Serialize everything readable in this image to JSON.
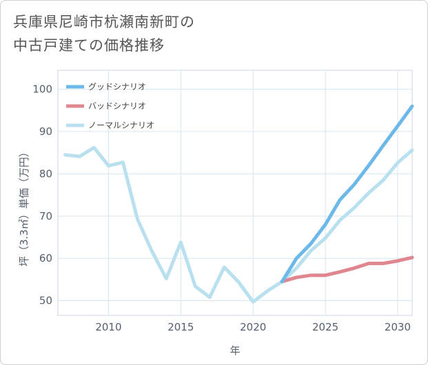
{
  "title": {
    "line1": "兵庫県尼崎市杭瀬南新町の",
    "line2": "中古戸建ての価格推移"
  },
  "chart_data": {
    "type": "line",
    "xlabel": "年",
    "ylabel": "坪（3.3㎡）単価（万円）",
    "xlim": [
      2006.5,
      2031
    ],
    "ylim": [
      46.5,
      104.5
    ],
    "x_ticks": [
      "2010",
      "2015",
      "2020",
      "2025",
      "2030"
    ],
    "y_ticks": [
      "50",
      "60",
      "70",
      "80",
      "90",
      "100"
    ],
    "grid": true,
    "legend_position": "top-left",
    "series": [
      {
        "name": "グッドシナリオ",
        "color": "#6cb8e8",
        "x": [
          2022,
          2023,
          2024,
          2025,
          2026,
          2027,
          2028,
          2029,
          2030,
          2031
        ],
        "y": [
          54.5,
          60.0,
          63.5,
          68.0,
          73.8,
          77.5,
          82.0,
          86.7,
          91.3,
          96.0
        ]
      },
      {
        "name": "バッドシナリオ",
        "color": "#e0868f",
        "x": [
          2022,
          2023,
          2024,
          2025,
          2026,
          2027,
          2028,
          2029,
          2030,
          2031
        ],
        "y": [
          54.5,
          55.5,
          56.0,
          56.0,
          56.8,
          57.7,
          58.8,
          58.8,
          59.4,
          60.2
        ]
      },
      {
        "name": "ノーマルシナリオ",
        "color": "#b9e0ee",
        "x": [
          2007,
          2008,
          2009,
          2010,
          2011,
          2012,
          2013,
          2014,
          2015,
          2016,
          2017,
          2018,
          2019,
          2020,
          2021,
          2022,
          2023,
          2024,
          2025,
          2026,
          2027,
          2028,
          2029,
          2030,
          2031
        ],
        "y": [
          84.5,
          84.1,
          86.2,
          81.9,
          82.7,
          69.3,
          61.7,
          55.2,
          63.8,
          53.4,
          50.8,
          57.9,
          54.4,
          49.7,
          52.3,
          54.5,
          57.7,
          61.8,
          64.8,
          69.0,
          72.0,
          75.5,
          78.5,
          82.6,
          85.6
        ]
      }
    ]
  }
}
